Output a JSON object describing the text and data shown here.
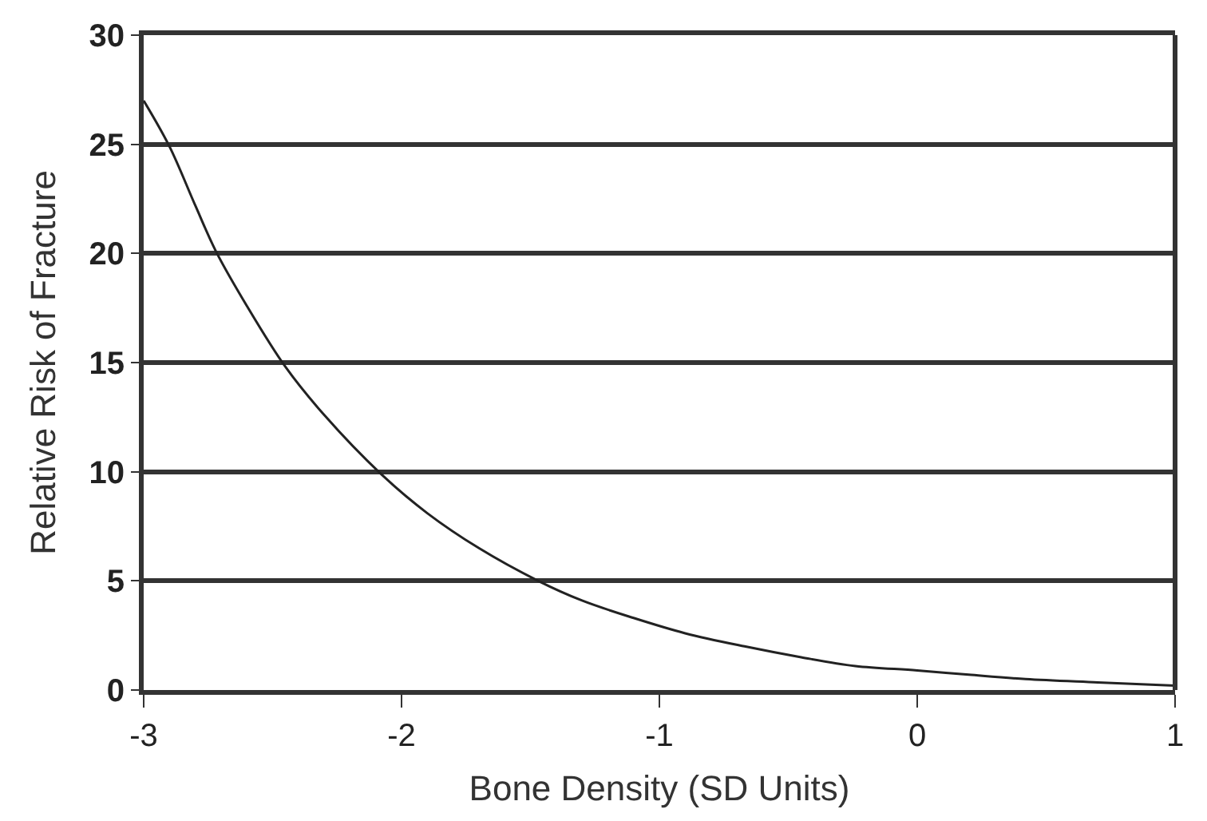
{
  "chart_data": {
    "type": "line",
    "xlabel": "Bone Density (SD Units)",
    "ylabel": "Relative Risk of Fracture",
    "x": [
      -3.0,
      -2.9,
      -2.8,
      -2.72,
      -2.6,
      -2.45,
      -2.3,
      -2.08,
      -1.9,
      -1.7,
      -1.47,
      -1.3,
      -1.1,
      -0.9,
      -0.67,
      -0.45,
      -0.24,
      0.0,
      0.2,
      0.42,
      0.7,
      1.0
    ],
    "series": [
      {
        "color": "#222222",
        "values": [
          27,
          24.9,
          22.2,
          20.1,
          17.6,
          14.8,
          12.6,
          9.9,
          8.1,
          6.5,
          5.0,
          4.1,
          3.3,
          2.6,
          2.0,
          1.5,
          1.1,
          0.9,
          0.7,
          0.5,
          0.35,
          0.2
        ]
      }
    ],
    "xlim": [
      -3,
      1
    ],
    "xticks": [
      -3,
      -2,
      -1,
      0,
      1
    ],
    "ylim": [
      0,
      30
    ],
    "yticks": [
      0,
      5,
      10,
      15,
      20,
      25,
      30
    ],
    "grid": "y",
    "marker": "none",
    "line_style": "solid"
  }
}
